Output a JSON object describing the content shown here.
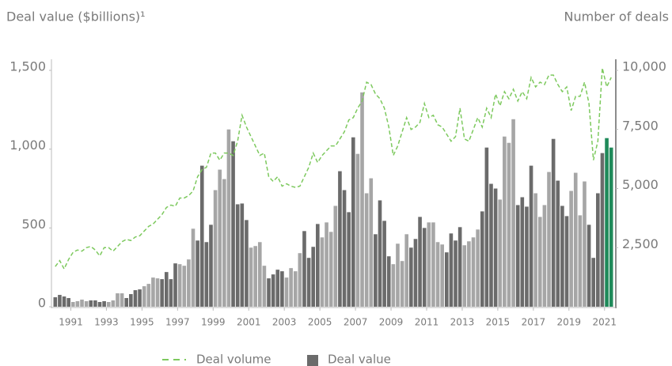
{
  "chart_data": {
    "type": "bar",
    "y_label": "Deal value ($billions)¹",
    "y2_label": "Number of deals",
    "x": [
      1990,
      1990.25,
      1990.5,
      1990.75,
      1991,
      1991.25,
      1991.5,
      1991.75,
      1992,
      1992.25,
      1992.5,
      1992.75,
      1993,
      1993.25,
      1993.5,
      1993.75,
      1994,
      1994.25,
      1994.5,
      1994.75,
      1995,
      1995.25,
      1995.5,
      1995.75,
      1996,
      1996.25,
      1996.5,
      1996.75,
      1997,
      1997.25,
      1997.5,
      1997.75,
      1998,
      1998.25,
      1998.5,
      1998.75,
      1999,
      1999.25,
      1999.5,
      1999.75,
      2000,
      2000.25,
      2000.5,
      2000.75,
      2001,
      2001.25,
      2001.5,
      2001.75,
      2002,
      2002.25,
      2002.5,
      2002.75,
      2003,
      2003.25,
      2003.5,
      2003.75,
      2004,
      2004.25,
      2004.5,
      2004.75,
      2005,
      2005.25,
      2005.5,
      2005.75,
      2006,
      2006.25,
      2006.5,
      2006.75,
      2007,
      2007.25,
      2007.5,
      2007.75,
      2008,
      2008.25,
      2008.5,
      2008.75,
      2009,
      2009.25,
      2009.5,
      2009.75,
      2010,
      2010.25,
      2010.5,
      2010.75,
      2011,
      2011.25,
      2011.5,
      2011.75,
      2012,
      2012.25,
      2012.5,
      2012.75,
      2013,
      2013.25,
      2013.5,
      2013.75,
      2014,
      2014.25,
      2014.5,
      2014.75,
      2015,
      2015.25,
      2015.5,
      2015.75,
      2016,
      2016.25,
      2016.5,
      2016.75,
      2017,
      2017.25,
      2017.5,
      2017.75,
      2018,
      2018.25,
      2018.5,
      2018.75,
      2019,
      2019.25,
      2019.5,
      2019.75,
      2020,
      2020.25,
      2020.5,
      2020.75,
      2021,
      2021.25
    ],
    "xlim": [
      1990,
      2021.5
    ],
    "xticks": [
      1991,
      1993,
      1995,
      1997,
      1999,
      2001,
      2003,
      2005,
      2007,
      2009,
      2011,
      2013,
      2015,
      2017,
      2019,
      2021
    ],
    "ylim": [
      0,
      1500
    ],
    "yticks": [
      0,
      500,
      {
        "value": 1000,
        "label": "1,000"
      },
      {
        "value": 1500,
        "label": "1,500"
      }
    ],
    "y2lim": [
      0,
      10000
    ],
    "y2ticks": [
      {
        "value": 2500,
        "label": "2,500"
      },
      {
        "value": 5000,
        "label": "5,000"
      },
      {
        "value": 7500,
        "label": "7,500"
      },
      {
        "value": 10000,
        "label": "10,000"
      }
    ],
    "series": [
      {
        "name": "Deal volume",
        "type": "line",
        "axis": "y2",
        "color": "#7dc95e",
        "dashed": true,
        "values": [
          1700,
          1950,
          1600,
          2000,
          2300,
          2400,
          2350,
          2500,
          2550,
          2400,
          2150,
          2500,
          2500,
          2350,
          2550,
          2750,
          2850,
          2800,
          2950,
          3000,
          3200,
          3400,
          3500,
          3700,
          3900,
          4200,
          4300,
          4250,
          4600,
          4600,
          4700,
          4900,
          5500,
          5800,
          5900,
          6500,
          6500,
          6200,
          6500,
          6500,
          6400,
          7000,
          8100,
          7600,
          7200,
          6800,
          6400,
          6500,
          5500,
          5300,
          5500,
          5100,
          5200,
          5100,
          5050,
          5100,
          5500,
          5900,
          6500,
          6100,
          6400,
          6600,
          6800,
          6800,
          7100,
          7400,
          7900,
          8000,
          8400,
          8700,
          9500,
          9400,
          9000,
          8800,
          8400,
          7600,
          6400,
          6800,
          7400,
          8000,
          7500,
          7600,
          7800,
          8600,
          8000,
          8100,
          7700,
          7600,
          7300,
          7000,
          7200,
          8400,
          7100,
          7000,
          7500,
          8000,
          7600,
          8400,
          8000,
          9000,
          8500,
          9100,
          8800,
          9200,
          8700,
          9100,
          8800,
          9700,
          9300,
          9500,
          9400,
          9800,
          9800,
          9400,
          9100,
          9300,
          8300,
          8900,
          8900,
          9500,
          8600,
          6200,
          7000,
          10100,
          9300,
          9700
        ]
      },
      {
        "name": "Deal value",
        "type": "bar",
        "axis": "y",
        "color": "#6b6b6b",
        "values": [
          60,
          75,
          65,
          55,
          30,
          35,
          45,
          35,
          40,
          40,
          30,
          35,
          30,
          40,
          85,
          85,
          55,
          80,
          105,
          110,
          130,
          145,
          185,
          180,
          175,
          220,
          175,
          275,
          270,
          260,
          300,
          495,
          420,
          895,
          410,
          520,
          740,
          870,
          810,
          1125,
          1050,
          650,
          655,
          550,
          375,
          385,
          410,
          260,
          180,
          205,
          235,
          225,
          185,
          245,
          225,
          340,
          480,
          310,
          380,
          525,
          440,
          535,
          475,
          640,
          860,
          740,
          600,
          1075,
          970,
          1360,
          720,
          815,
          460,
          675,
          545,
          320,
          270,
          400,
          290,
          460,
          375,
          430,
          570,
          500,
          535,
          535,
          410,
          395,
          345,
          465,
          420,
          505,
          390,
          415,
          440,
          490,
          605,
          1010,
          780,
          750,
          680,
          1080,
          1040,
          1190,
          645,
          695,
          635,
          895,
          720,
          570,
          645,
          855,
          1065,
          800,
          640,
          575,
          735,
          850,
          580,
          795,
          520,
          310,
          720,
          975,
          1070,
          1010
        ],
        "colors": [
          "#6b6b6b",
          "#6b6b6b",
          "#6b6b6b",
          "#6b6b6b",
          "#a6a6a6",
          "#a6a6a6",
          "#a6a6a6",
          "#a6a6a6",
          "#6b6b6b",
          "#6b6b6b",
          "#6b6b6b",
          "#6b6b6b",
          "#a6a6a6",
          "#a6a6a6",
          "#a6a6a6",
          "#a6a6a6",
          "#6b6b6b",
          "#6b6b6b",
          "#6b6b6b",
          "#6b6b6b",
          "#a6a6a6",
          "#a6a6a6",
          "#a6a6a6",
          "#a6a6a6",
          "#6b6b6b",
          "#6b6b6b",
          "#6b6b6b",
          "#6b6b6b",
          "#a6a6a6",
          "#a6a6a6",
          "#a6a6a6",
          "#a6a6a6",
          "#6b6b6b",
          "#6b6b6b",
          "#6b6b6b",
          "#6b6b6b",
          "#a6a6a6",
          "#a6a6a6",
          "#a6a6a6",
          "#a6a6a6",
          "#6b6b6b",
          "#6b6b6b",
          "#6b6b6b",
          "#6b6b6b",
          "#a6a6a6",
          "#a6a6a6",
          "#a6a6a6",
          "#a6a6a6",
          "#6b6b6b",
          "#6b6b6b",
          "#6b6b6b",
          "#6b6b6b",
          "#a6a6a6",
          "#a6a6a6",
          "#a6a6a6",
          "#a6a6a6",
          "#6b6b6b",
          "#6b6b6b",
          "#6b6b6b",
          "#6b6b6b",
          "#a6a6a6",
          "#a6a6a6",
          "#a6a6a6",
          "#a6a6a6",
          "#6b6b6b",
          "#6b6b6b",
          "#6b6b6b",
          "#6b6b6b",
          "#a6a6a6",
          "#a6a6a6",
          "#a6a6a6",
          "#a6a6a6",
          "#6b6b6b",
          "#6b6b6b",
          "#6b6b6b",
          "#6b6b6b",
          "#a6a6a6",
          "#a6a6a6",
          "#a6a6a6",
          "#a6a6a6",
          "#6b6b6b",
          "#6b6b6b",
          "#6b6b6b",
          "#6b6b6b",
          "#a6a6a6",
          "#a6a6a6",
          "#a6a6a6",
          "#a6a6a6",
          "#6b6b6b",
          "#6b6b6b",
          "#6b6b6b",
          "#6b6b6b",
          "#a6a6a6",
          "#a6a6a6",
          "#a6a6a6",
          "#a6a6a6",
          "#6b6b6b",
          "#6b6b6b",
          "#6b6b6b",
          "#6b6b6b",
          "#a6a6a6",
          "#a6a6a6",
          "#a6a6a6",
          "#a6a6a6",
          "#6b6b6b",
          "#6b6b6b",
          "#6b6b6b",
          "#6b6b6b",
          "#a6a6a6",
          "#a6a6a6",
          "#a6a6a6",
          "#a6a6a6",
          "#6b6b6b",
          "#6b6b6b",
          "#6b6b6b",
          "#6b6b6b",
          "#a6a6a6",
          "#a6a6a6",
          "#a6a6a6",
          "#a6a6a6",
          "#6b6b6b",
          "#6b6b6b",
          "#6b6b6b",
          "#6b6b6b",
          "#1f8a5a",
          "#1f8a5a"
        ]
      }
    ]
  }
}
